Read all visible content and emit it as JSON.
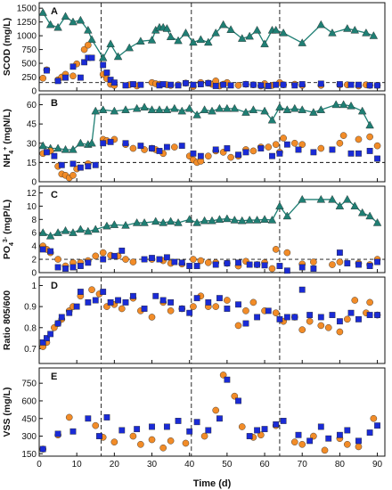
{
  "chart_data": [
    {
      "panel": "A",
      "type": "scatter",
      "ylabel": "SCOD (mg/L)",
      "ylim": [
        0,
        1600
      ],
      "yticks": [
        0,
        250,
        500,
        750,
        1000,
        1250,
        1500
      ],
      "hline": 150,
      "series": [
        {
          "marker": "triangle",
          "color": "#1f7f74",
          "connected": true,
          "x": [
            1,
            3,
            5,
            7,
            9,
            11,
            13,
            14,
            17,
            19,
            21,
            24,
            27,
            30,
            31,
            32,
            33,
            34,
            35,
            37,
            39,
            41,
            43,
            45,
            47,
            49,
            51,
            54,
            56,
            58,
            60,
            62,
            63,
            65,
            70,
            75,
            78,
            82,
            84,
            87,
            89
          ],
          "y": [
            1420,
            1200,
            1150,
            1350,
            1250,
            1280,
            1100,
            930,
            600,
            850,
            620,
            780,
            900,
            920,
            1100,
            1150,
            1150,
            1130,
            980,
            910,
            1050,
            880,
            930,
            880,
            1050,
            1200,
            1110,
            950,
            990,
            1100,
            850,
            1100,
            1100,
            1050,
            870,
            1200,
            1050,
            1130,
            1100,
            1050,
            1000
          ]
        },
        {
          "marker": "circle",
          "color": "#f28c28",
          "x": [
            1,
            2,
            5,
            6,
            7,
            9,
            10,
            12,
            13,
            17,
            18,
            19,
            20,
            24,
            26,
            30,
            31,
            32,
            34,
            35,
            37,
            39,
            41,
            43,
            45,
            46,
            47,
            48,
            49,
            50,
            53,
            55,
            57,
            59,
            60,
            62,
            64,
            65,
            68,
            70,
            75,
            80,
            82,
            85,
            87,
            88,
            90
          ],
          "y": [
            230,
            380,
            200,
            250,
            300,
            270,
            490,
            750,
            830,
            300,
            220,
            120,
            100,
            110,
            90,
            150,
            130,
            120,
            110,
            100,
            110,
            140,
            80,
            150,
            140,
            120,
            180,
            90,
            120,
            150,
            100,
            120,
            110,
            90,
            130,
            100,
            150,
            110,
            120,
            100,
            100,
            110,
            110,
            90,
            110,
            100,
            100
          ]
        },
        {
          "marker": "square",
          "color": "#1a2bd6",
          "x": [
            2,
            5,
            7,
            9,
            11,
            12,
            13,
            14,
            17,
            18,
            19,
            20,
            23,
            25,
            27,
            32,
            33,
            35,
            37,
            39,
            41,
            43,
            45,
            47,
            49,
            51,
            55,
            57,
            59,
            61,
            63,
            65,
            68,
            70,
            75,
            80,
            83,
            85,
            88,
            90
          ],
          "y": [
            370,
            180,
            240,
            440,
            240,
            520,
            600,
            600,
            470,
            330,
            200,
            150,
            100,
            120,
            110,
            100,
            120,
            110,
            100,
            140,
            110,
            120,
            140,
            90,
            110,
            100,
            120,
            110,
            100,
            90,
            110,
            110,
            100,
            120,
            130,
            120,
            110,
            110,
            100,
            100
          ]
        }
      ]
    },
    {
      "panel": "B",
      "type": "scatter",
      "ylabel": "NH4+ (mgN/L)",
      "ylim": [
        0,
        68
      ],
      "yticks": [
        0,
        15,
        30,
        45,
        60
      ],
      "hline": 15,
      "series": [
        {
          "marker": "triangle",
          "color": "#1f7f74",
          "connected": true,
          "x": [
            1,
            3,
            5,
            7,
            9,
            11,
            13,
            14,
            15,
            17,
            20,
            23,
            26,
            28,
            30,
            32,
            34,
            36,
            38,
            40,
            42,
            44,
            46,
            48,
            50,
            52,
            55,
            57,
            60,
            62,
            64,
            66,
            68,
            70,
            73,
            75,
            79,
            81,
            83,
            86,
            88
          ],
          "y": [
            28,
            26,
            26,
            25,
            25,
            30,
            29,
            30,
            55,
            56,
            55,
            56,
            57,
            58,
            56,
            56,
            56,
            57,
            55,
            57,
            52,
            56,
            55,
            57,
            57,
            57,
            54,
            56,
            55,
            48,
            58,
            56,
            57,
            56,
            54,
            56,
            60,
            60,
            59,
            55,
            44
          ]
        },
        {
          "marker": "circle",
          "color": "#f28c28",
          "x": [
            1,
            3,
            5,
            6,
            7,
            8,
            9,
            10,
            13,
            17,
            18,
            20,
            23,
            25,
            28,
            30,
            31,
            33,
            36,
            40,
            41,
            42,
            43,
            45,
            47,
            49,
            51,
            53,
            55,
            57,
            59,
            61,
            63,
            64,
            65,
            68,
            70,
            75,
            80,
            81,
            85,
            88,
            90
          ],
          "y": [
            22,
            24,
            12,
            6,
            5,
            3,
            5,
            10,
            14,
            33,
            32,
            33,
            29,
            26,
            25,
            26,
            25,
            22,
            27,
            20,
            17,
            15,
            16,
            20,
            24,
            23,
            19,
            20,
            25,
            24,
            27,
            27,
            29,
            23,
            34,
            30,
            29,
            26,
            30,
            36,
            33,
            35,
            28
          ]
        },
        {
          "marker": "square",
          "color": "#1a2bd6",
          "x": [
            2,
            4,
            6,
            9,
            11,
            13,
            15,
            17,
            19,
            23,
            27,
            30,
            32,
            34,
            38,
            41,
            43,
            47,
            50,
            53,
            55,
            59,
            62,
            64,
            66,
            69,
            73,
            78,
            83,
            85,
            88,
            90
          ],
          "y": [
            23,
            20,
            13,
            14,
            11,
            12,
            13,
            30,
            31,
            30,
            28,
            26,
            24,
            27,
            28,
            22,
            20,
            25,
            26,
            21,
            23,
            26,
            20,
            22,
            29,
            25,
            23,
            25,
            22,
            22,
            24,
            18
          ]
        }
      ]
    },
    {
      "panel": "C",
      "type": "scatter",
      "ylabel": "PO4 3- (mgP/L)",
      "ylim": [
        0,
        13
      ],
      "yticks": [
        0,
        2,
        4,
        6,
        8,
        10,
        12
      ],
      "hline": 2,
      "series": [
        {
          "marker": "triangle",
          "color": "#1f7f74",
          "connected": true,
          "x": [
            1,
            3,
            5,
            7,
            9,
            11,
            13,
            15,
            18,
            20,
            23,
            26,
            28,
            31,
            33,
            35,
            37,
            40,
            42,
            44,
            46,
            48,
            50,
            52,
            54,
            56,
            58,
            60,
            62,
            64,
            66,
            70,
            75,
            78,
            80,
            82,
            84,
            86,
            88,
            90
          ],
          "y": [
            6,
            5.5,
            6,
            6.3,
            6,
            6.5,
            6.2,
            6.5,
            7,
            7.2,
            7.1,
            7.5,
            7.5,
            7.7,
            7.5,
            7.7,
            7.5,
            8,
            7.5,
            7.8,
            7.8,
            8,
            8.1,
            7.9,
            7.8,
            7.9,
            7.9,
            8,
            7.9,
            10,
            8.5,
            11,
            11,
            11,
            10,
            11,
            10,
            9,
            8.5,
            7.5
          ]
        },
        {
          "marker": "circle",
          "color": "#f28c28",
          "x": [
            1,
            2,
            3,
            5,
            7,
            9,
            11,
            13,
            15,
            17,
            19,
            21,
            23,
            25,
            30,
            33,
            35,
            38,
            41,
            43,
            45,
            47,
            50,
            53,
            55,
            58,
            60,
            62,
            63,
            66,
            70,
            73,
            78,
            80,
            85,
            88,
            90
          ],
          "y": [
            4,
            3.5,
            3,
            2,
            1,
            1.5,
            1.5,
            1.8,
            2.5,
            3,
            2.6,
            2.5,
            2,
            1.6,
            2,
            1.8,
            1.4,
            1.3,
            2,
            1.8,
            1.5,
            1.5,
            1.4,
            1,
            1.7,
            1.2,
            1.5,
            0.6,
            3.5,
            3,
            1.3,
            1.6,
            1.2,
            1.6,
            1.4,
            1.2,
            2
          ]
        },
        {
          "marker": "square",
          "color": "#1a2bd6",
          "x": [
            1,
            3,
            5,
            7,
            9,
            11,
            13,
            17,
            20,
            22,
            28,
            30,
            32,
            34,
            36,
            38,
            40,
            42,
            47,
            50,
            53,
            56,
            58,
            60,
            64,
            66,
            70,
            73,
            80,
            82,
            85,
            88,
            90
          ],
          "y": [
            3.5,
            3.2,
            0.8,
            0.6,
            0.8,
            1,
            1.5,
            2,
            2.5,
            3.3,
            2,
            2.2,
            2,
            2.3,
            1.6,
            1.5,
            1,
            1,
            1.2,
            1.4,
            1.5,
            1.2,
            1.2,
            1.1,
            1,
            0.3,
            0.8,
            0.6,
            3,
            1.4,
            1.2,
            1,
            1.6
          ]
        }
      ]
    },
    {
      "panel": "D",
      "type": "scatter",
      "ylabel": "Ratio 805/600",
      "ylim": [
        0.63,
        1.04
      ],
      "yticks": [
        0.7,
        0.8,
        0.9,
        1.0
      ],
      "series": [
        {
          "marker": "circle",
          "color": "#f28c28",
          "x": [
            1,
            2,
            4,
            5,
            6,
            8,
            9,
            11,
            14,
            16,
            18,
            20,
            22,
            25,
            27,
            30,
            33,
            35,
            38,
            41,
            43,
            45,
            47,
            50,
            53,
            55,
            57,
            60,
            63,
            65,
            68,
            70,
            72,
            75,
            77,
            80,
            82,
            84,
            87,
            88,
            90
          ],
          "y": [
            0.71,
            0.73,
            0.8,
            0.82,
            0.84,
            0.88,
            0.9,
            0.95,
            0.98,
            0.96,
            0.9,
            0.91,
            0.89,
            0.94,
            0.88,
            0.85,
            0.92,
            0.88,
            0.89,
            0.9,
            0.95,
            0.9,
            0.9,
            0.93,
            0.81,
            0.88,
            0.92,
            0.88,
            0.87,
            0.83,
            0.85,
            0.79,
            0.83,
            0.81,
            0.8,
            0.78,
            0.84,
            0.93,
            0.87,
            0.92,
            0.86
          ]
        },
        {
          "marker": "square",
          "color": "#1a2bd6",
          "x": [
            1,
            2,
            3,
            5,
            6,
            8,
            10,
            11,
            13,
            15,
            17,
            19,
            21,
            23,
            25,
            28,
            31,
            33,
            35,
            38,
            40,
            42,
            45,
            48,
            50,
            53,
            55,
            58,
            61,
            64,
            66,
            68,
            70,
            72,
            75,
            78,
            80,
            83,
            85,
            88,
            90
          ],
          "y": [
            0.73,
            0.75,
            0.77,
            0.82,
            0.85,
            0.87,
            0.9,
            0.97,
            0.92,
            0.93,
            0.97,
            0.92,
            0.93,
            0.92,
            0.95,
            0.89,
            0.95,
            0.93,
            0.92,
            0.89,
            0.87,
            0.94,
            0.92,
            0.94,
            0.89,
            0.91,
            0.82,
            0.85,
            0.88,
            0.84,
            0.85,
            0.85,
            0.98,
            0.86,
            0.85,
            0.86,
            0.83,
            0.87,
            0.84,
            0.86,
            0.86
          ]
        }
      ]
    },
    {
      "panel": "E",
      "type": "scatter",
      "ylabel": "VSS (mg/L)",
      "ylim": [
        130,
        880
      ],
      "yticks": [
        150,
        300,
        450,
        600,
        750
      ],
      "series": [
        {
          "marker": "circle",
          "color": "#f28c28",
          "x": [
            1,
            5,
            8,
            15,
            17,
            20,
            25,
            27,
            30,
            33,
            35,
            39,
            44,
            47,
            49,
            52,
            54,
            57,
            59,
            63,
            68,
            70,
            73,
            76,
            80,
            82,
            85,
            89
          ],
          "y": [
            190,
            310,
            460,
            390,
            290,
            250,
            300,
            230,
            270,
            200,
            260,
            240,
            300,
            520,
            820,
            640,
            380,
            290,
            310,
            390,
            250,
            230,
            300,
            180,
            280,
            230,
            210,
            450
          ]
        },
        {
          "marker": "square",
          "color": "#1a2bd6",
          "x": [
            1,
            5,
            9,
            13,
            16,
            18,
            22,
            26,
            30,
            34,
            37,
            40,
            42,
            45,
            48,
            50,
            53,
            56,
            58,
            60,
            63,
            65,
            69,
            72,
            75,
            77,
            80,
            82,
            85,
            88,
            90
          ],
          "y": [
            190,
            320,
            340,
            450,
            300,
            460,
            350,
            360,
            380,
            380,
            430,
            340,
            420,
            350,
            450,
            780,
            600,
            300,
            350,
            360,
            400,
            430,
            310,
            260,
            380,
            280,
            310,
            350,
            260,
            330,
            390
          ]
        }
      ]
    }
  ],
  "axes": {
    "xlabel": "Time (d)",
    "xticks": [
      "0",
      "10",
      "20",
      "30",
      "40",
      "50",
      "60",
      "70",
      "80",
      "90"
    ],
    "xlim": [
      0,
      92
    ],
    "vlines": [
      16.5,
      40.5,
      64
    ]
  }
}
